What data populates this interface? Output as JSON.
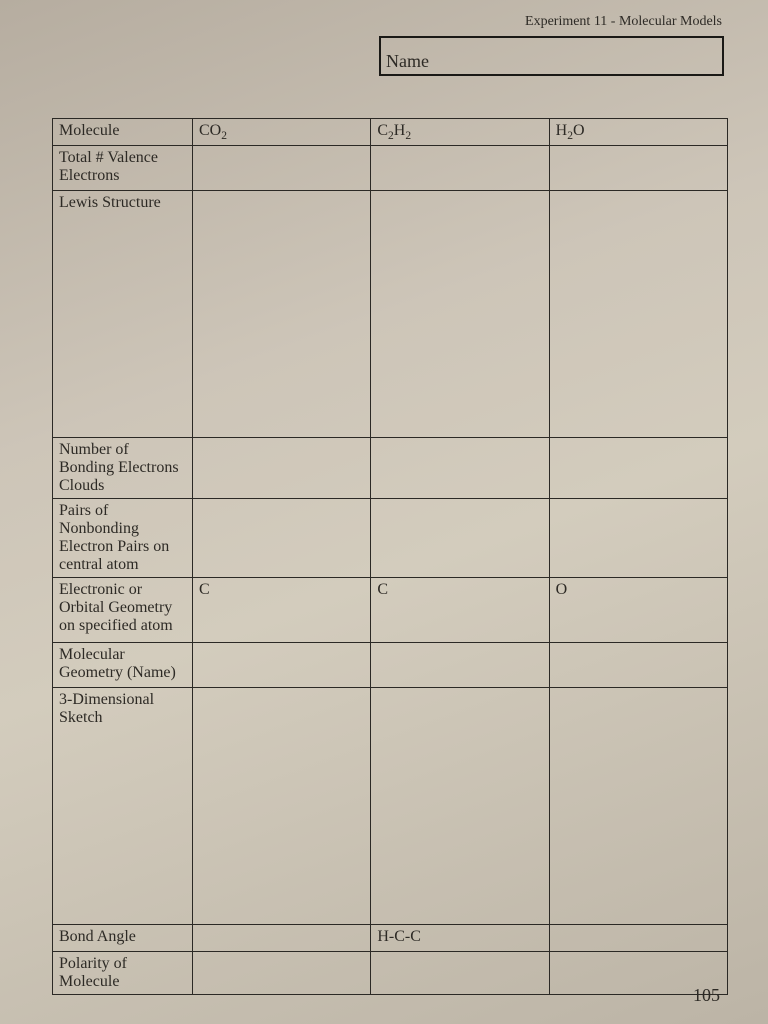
{
  "header": {
    "experiment_title": "Experiment 11 - Molecular Models",
    "name_label": "Name"
  },
  "table": {
    "columns": {
      "label_header": "Molecule",
      "mol1": {
        "base": "CO",
        "sub": "2"
      },
      "mol2": {
        "base": "C",
        "sub1": "2",
        "mid": "H",
        "sub2": "2"
      },
      "mol3": {
        "base": "H",
        "sub": "2",
        "tail": "O"
      }
    },
    "rows": {
      "valence": {
        "label": "Total # Valence Electrons"
      },
      "lewis": {
        "label": "Lewis Structure"
      },
      "bonding": {
        "label": "Number of Bonding Electrons Clouds"
      },
      "nonbond": {
        "label": "Pairs of Nonbonding Electron Pairs on central atom"
      },
      "geom": {
        "label": "Electronic or Orbital Geometry on specified atom",
        "c1": "C",
        "c2": "C",
        "c3": "O"
      },
      "molgeom": {
        "label": "Molecular Geometry (Name)"
      },
      "sketch": {
        "label": "3-Dimensional Sketch"
      },
      "angle": {
        "label": "Bond Angle",
        "c2": "H-C-C"
      },
      "polarity": {
        "label": "Polarity of Molecule"
      }
    }
  },
  "page_number": "105",
  "colors": {
    "text": "#2d2a25",
    "border": "#2b2925",
    "name_box_border": "#1a1916"
  }
}
